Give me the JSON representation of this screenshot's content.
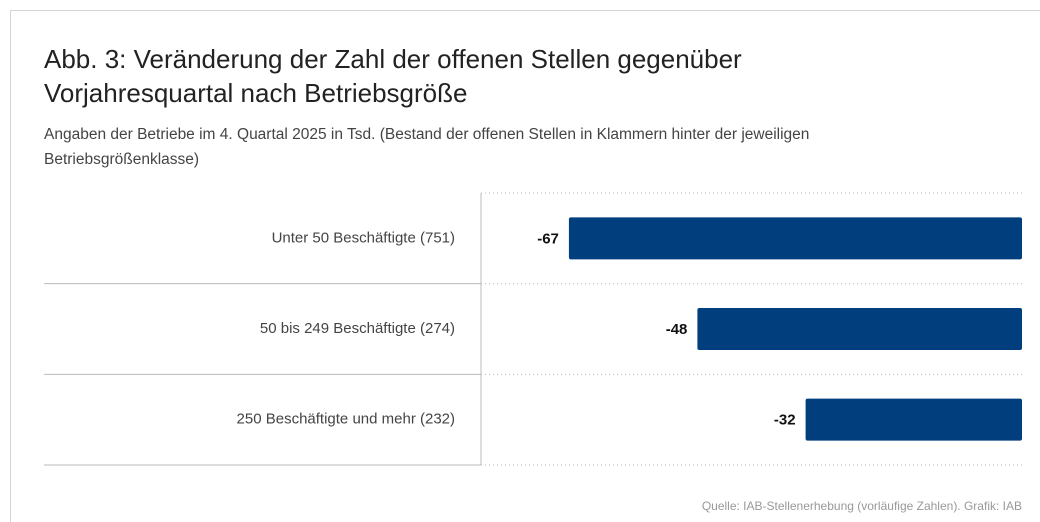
{
  "chart_data": {
    "type": "barh",
    "title": "Abb. 3: Veränderung der Zahl der offenen Stellen gegenüber Vorjahresquartal nach Betriebsgröße",
    "subtitle": "Angaben der Betriebe im 4. Quartal 2025 in Tsd. (Bestand der offenen Stellen in Klammern hinter der jeweiligen Betriebsgrößenklasse)",
    "categories": [
      "Unter 50 Beschäftigte (751)",
      "50 bis 249 Beschäftigte (274)",
      "250 Beschäftigte und mehr (232)"
    ],
    "values": [
      -67,
      -48,
      -32
    ],
    "color": "#003e7e",
    "xlim": [
      -80,
      0
    ],
    "source": "Quelle: IAB-Stellenerhebung (vorläufige Zahlen). Grafik: IAB"
  }
}
